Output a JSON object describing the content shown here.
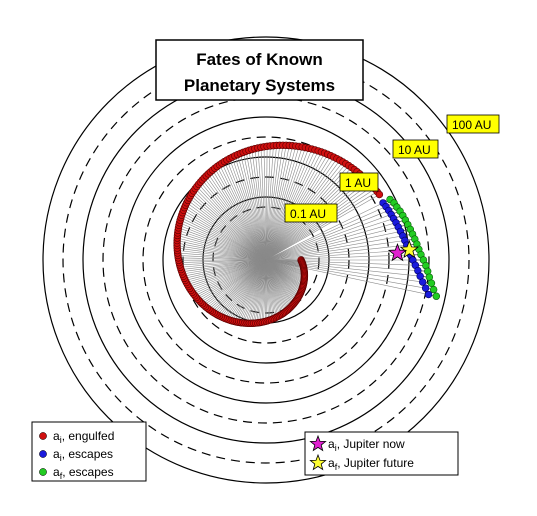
{
  "chart_data": {
    "type": "scatter",
    "title_lines": [
      "Fates of Known",
      "Planetary Systems"
    ],
    "radial_scale": "log",
    "rings_au": [
      {
        "label": "",
        "au": 0.0562,
        "style": "dashed"
      },
      {
        "label": "0.1 AU",
        "au": 0.1,
        "style": "solid"
      },
      {
        "label": "",
        "au": 0.316,
        "style": "dashed"
      },
      {
        "label": "1 AU",
        "au": 1,
        "style": "solid"
      },
      {
        "label": "",
        "au": 3.16,
        "style": "dashed"
      },
      {
        "label": "10 AU",
        "au": 10,
        "style": "solid"
      },
      {
        "label": "",
        "au": 31.6,
        "style": "dashed"
      },
      {
        "label": "100 AU",
        "au": 100,
        "style": "solid"
      },
      {
        "label": "",
        "au": 316,
        "style": "dashed"
      },
      {
        "label": "",
        "au": 1000,
        "style": "solid"
      }
    ],
    "series": [
      {
        "key": "engulfed",
        "color": "#d01010",
        "count": 212,
        "a_min_au": 0.02,
        "a_max_au": 5.0,
        "angle_start_deg": 0,
        "angle_end_deg": 330
      },
      {
        "key": "escapes_initial",
        "color": "#1a1adc",
        "points_au_deg": [
          [
            4.8,
            334
          ],
          [
            5.1,
            336
          ],
          [
            5.4,
            338
          ],
          [
            5.7,
            340
          ],
          [
            6.0,
            342
          ],
          [
            6.4,
            344
          ],
          [
            6.8,
            346
          ],
          [
            7.3,
            348
          ],
          [
            7.9,
            350
          ],
          [
            8.5,
            352
          ],
          [
            9.2,
            354
          ],
          [
            10.0,
            356
          ],
          [
            11.0,
            358
          ],
          [
            12.5,
            360
          ],
          [
            14.5,
            362
          ],
          [
            17.0,
            364
          ],
          [
            20.0,
            366
          ],
          [
            24.0,
            368
          ],
          [
            30.0,
            370
          ],
          [
            38.0,
            372
          ]
        ]
      },
      {
        "key": "escapes_final",
        "color": "#22cc22",
        "points_au_deg": [
          [
            7.5,
            334
          ],
          [
            8.5,
            336
          ],
          [
            9.0,
            338
          ],
          [
            9.8,
            340
          ],
          [
            10.5,
            342
          ],
          [
            11.2,
            344
          ],
          [
            12.0,
            346
          ],
          [
            13.0,
            348
          ],
          [
            14.0,
            350
          ],
          [
            15.2,
            352
          ],
          [
            16.5,
            354
          ],
          [
            18.0,
            356
          ],
          [
            20.0,
            358
          ],
          [
            23.0,
            360
          ],
          [
            26.5,
            362
          ],
          [
            30.0,
            364
          ],
          [
            34.0,
            366
          ],
          [
            40.0,
            368
          ],
          [
            48.0,
            370
          ],
          [
            60.0,
            372
          ]
        ]
      },
      {
        "key": "jupiter",
        "now_au_deg": [
          5.2,
          357
        ],
        "future_au_deg": [
          10.4,
          356
        ]
      }
    ],
    "legend_left": [
      {
        "marker_color": "#d01010",
        "sym": "a",
        "sub": "i",
        "label": ", engulfed"
      },
      {
        "marker_color": "#1a1adc",
        "sym": "a",
        "sub": "i",
        "label": ", escapes"
      },
      {
        "marker_color": "#22cc22",
        "sym": "a",
        "sub": "f",
        "label": ", escapes"
      }
    ],
    "legend_right": [
      {
        "marker_color": "#e020d0",
        "sym": "a",
        "sub": "i",
        "label": ", Jupiter now"
      },
      {
        "marker_color": "#ffff33",
        "sym": "a",
        "sub": "f",
        "label": ", Jupiter future"
      }
    ],
    "label_color": "#ffff00"
  }
}
